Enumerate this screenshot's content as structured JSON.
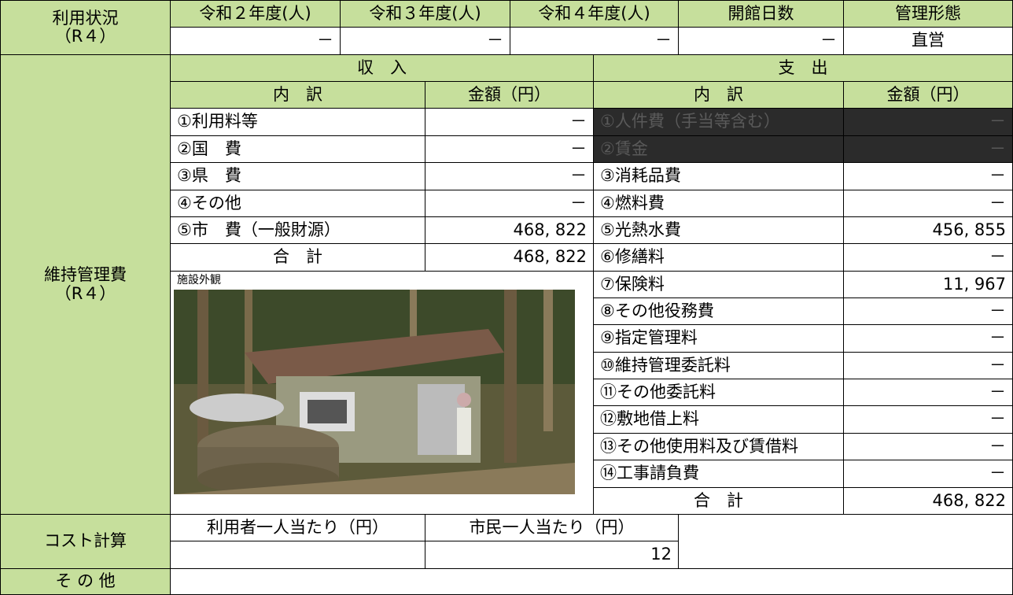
{
  "usage": {
    "label": "利用状況",
    "label_sub": "（R４）",
    "headers": [
      "令和２年度(人)",
      "令和３年度(人)",
      "令和４年度(人)",
      "開館日数",
      "管理形態"
    ],
    "values": [
      "－",
      "－",
      "－",
      "－",
      "直営"
    ]
  },
  "maintenance": {
    "label": "維持管理費",
    "label_sub": "（R４）",
    "income": {
      "title": "収　入",
      "col_item": "内　訳",
      "col_amount": "金額（円）",
      "rows": [
        [
          "①利用料等",
          "－"
        ],
        [
          "②国　費",
          "－"
        ],
        [
          "③県　費",
          "－"
        ],
        [
          "④その他",
          "－"
        ],
        [
          "⑤市　費（一般財源）",
          "468, 822"
        ]
      ],
      "total": [
        "合　計",
        "468, 822"
      ]
    },
    "photo_label": "施設外観",
    "expense": {
      "title": "支　出",
      "col_item": "内　訳",
      "col_amount": "金額（円）",
      "rows": [
        [
          "①人件費（手当等含む）",
          "－"
        ],
        [
          "②賃金",
          "－"
        ],
        [
          "③消耗品費",
          "－"
        ],
        [
          "④燃料費",
          "－"
        ],
        [
          "⑤光熱水費",
          "456, 855"
        ],
        [
          "⑥修繕料",
          "－"
        ],
        [
          "⑦保険料",
          "11, 967"
        ],
        [
          "⑧その他役務費",
          "－"
        ],
        [
          "⑨指定管理料",
          "－"
        ],
        [
          "⑩維持管理委託料",
          "－"
        ],
        [
          "⑪その他委託料",
          "－"
        ],
        [
          "⑫敷地借上料",
          "－"
        ],
        [
          "⑬その他使用料及び賃借料",
          "－"
        ],
        [
          "⑭工事請負費",
          "－"
        ]
      ],
      "total": [
        "合　計",
        "468, 822"
      ]
    }
  },
  "cost": {
    "label": "コスト計算",
    "per_user": "利用者一人当たり（円）",
    "per_citizen": "市民一人当たり（円）",
    "per_citizen_value": "12"
  },
  "other": {
    "label": "そ の 他"
  }
}
